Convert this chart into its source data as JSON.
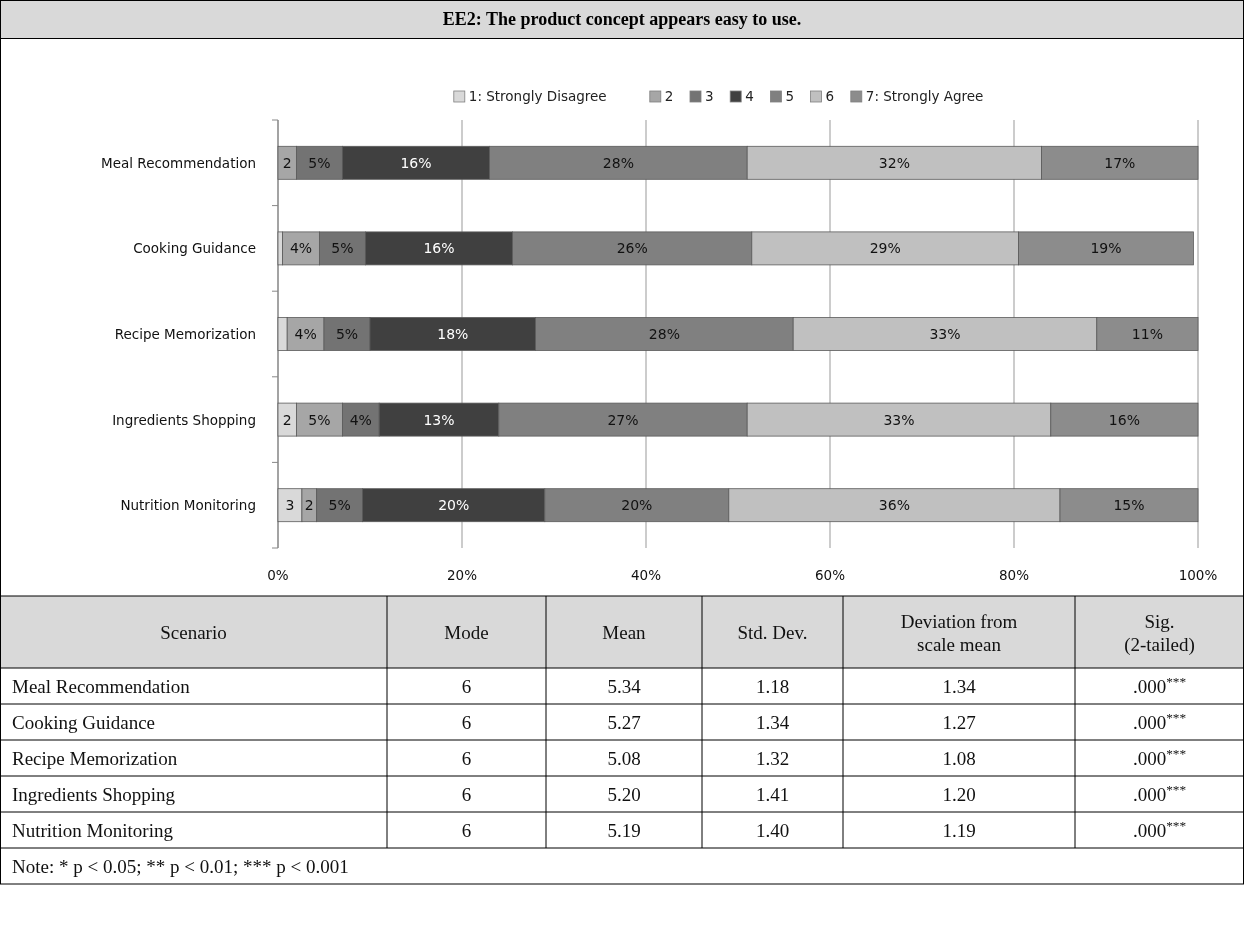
{
  "chart_data": [
    {
      "type": "bar",
      "orientation": "horizontal",
      "stacked": true,
      "title": "EE2: The product concept appears easy to use.",
      "categories": [
        "Meal Recommendation",
        "Cooking Guidance",
        "Recipe Memorization",
        "Ingredients Shopping",
        "Nutrition Monitoring"
      ],
      "series": [
        {
          "name": "1: Strongly Disagree",
          "color": "#d9d9d9",
          "values": [
            0,
            0.5,
            1,
            2,
            2.6
          ],
          "value_labels": [
            null,
            null,
            null,
            "2",
            "3"
          ]
        },
        {
          "name": "2",
          "color": "#a6a6a6",
          "values": [
            2,
            4,
            4,
            5,
            1.6
          ],
          "value_labels": [
            "2",
            "4%",
            "4%",
            "5%",
            "2"
          ]
        },
        {
          "name": "3",
          "color": "#737373",
          "values": [
            5,
            5,
            5,
            4,
            5
          ],
          "value_labels": [
            "5%",
            "5%",
            "5%",
            "4%",
            "5%"
          ]
        },
        {
          "name": "4",
          "color": "#404040",
          "values": [
            16,
            16,
            18,
            13,
            19.8
          ],
          "value_labels": [
            "16%",
            "16%",
            "18%",
            "13%",
            "20%"
          ]
        },
        {
          "name": "5",
          "color": "#808080",
          "values": [
            28,
            26,
            28,
            27,
            20
          ],
          "value_labels": [
            "28%",
            "26%",
            "28%",
            "27%",
            "20%"
          ]
        },
        {
          "name": "6",
          "color": "#c0c0c0",
          "values": [
            32,
            29,
            33,
            33,
            36
          ],
          "value_labels": [
            "32%",
            "29%",
            "33%",
            "33%",
            "36%"
          ]
        },
        {
          "name": "7: Strongly Agree",
          "color": "#8c8c8c",
          "values": [
            17,
            19,
            11,
            16,
            15
          ],
          "value_labels": [
            "17%",
            "19%",
            "11%",
            "16%",
            "15%"
          ]
        }
      ],
      "xlim": [
        0,
        100
      ],
      "xticks": [
        {
          "value": 0,
          "label": "0%"
        },
        {
          "value": 20,
          "label": "20%"
        },
        {
          "value": 40,
          "label": "40%"
        },
        {
          "value": 60,
          "label": "60%"
        },
        {
          "value": 80,
          "label": "80%"
        },
        {
          "value": 100,
          "label": "100%"
        }
      ],
      "grid": "x",
      "legend": "top"
    },
    {
      "type": "other",
      "categories": [
        "Scenario",
        "Mode",
        "Mean",
        "Std. Dev.",
        "Deviation from\nscale mean",
        "Sig.\n(2-tailed)"
      ],
      "y_categories": [
        "Meal Recommendation",
        "Cooking Guidance",
        "Recipe Memorization",
        "Ingredients Shopping",
        "Nutrition Monitoring"
      ],
      "cell_labels": [
        [
          "6",
          "5.34",
          "1.18",
          "1.34",
          ".000$^{***}$"
        ],
        [
          "6",
          "5.27",
          "1.34",
          "1.27",
          ".000$^{***}$"
        ],
        [
          "6",
          "5.08",
          "1.32",
          "1.08",
          ".000$^{***}$"
        ],
        [
          "6",
          "5.20",
          "1.41",
          "1.20",
          ".000$^{***}$"
        ],
        [
          "6",
          "5.19",
          "1.40",
          "1.19",
          ".000$^{***}$"
        ]
      ],
      "annotations": [
        "Note: * p < 0.05; ** p < 0.01; *** p < 0.001"
      ]
    }
  ]
}
